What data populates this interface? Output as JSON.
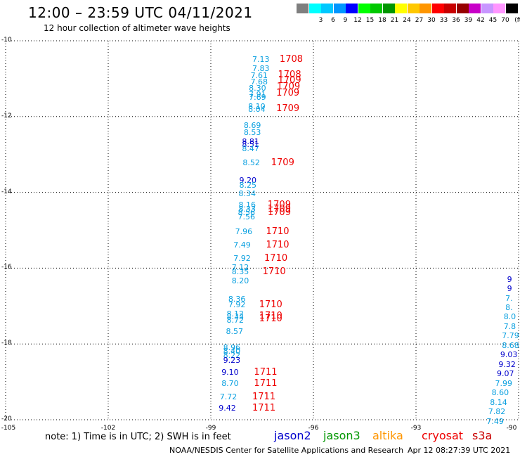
{
  "header": {
    "title": "12:00 – 23:59 UTC 04/11/2021",
    "subtitle": "12 hour collection of altimeter wave heights"
  },
  "color_scale": {
    "unit": "(ft)",
    "swatches": [
      {
        "color": "#7f7f7f",
        "label": ""
      },
      {
        "color": "#00ffff",
        "label": "3"
      },
      {
        "color": "#00c8ff",
        "label": "6"
      },
      {
        "color": "#0096ff",
        "label": "9"
      },
      {
        "color": "#0000ff",
        "label": "12"
      },
      {
        "color": "#00ff00",
        "label": "15"
      },
      {
        "color": "#00c800",
        "label": "18"
      },
      {
        "color": "#009600",
        "label": "21"
      },
      {
        "color": "#ffff00",
        "label": "24"
      },
      {
        "color": "#ffc800",
        "label": "27"
      },
      {
        "color": "#ff9600",
        "label": "30"
      },
      {
        "color": "#ff0000",
        "label": "33"
      },
      {
        "color": "#c80000",
        "label": "36"
      },
      {
        "color": "#960000",
        "label": "39"
      },
      {
        "color": "#c800c8",
        "label": "42"
      },
      {
        "color": "#c896ff",
        "label": "45"
      },
      {
        "color": "#ff96ff",
        "label": "70"
      },
      {
        "color": "#000000",
        "label": ""
      }
    ]
  },
  "axes": {
    "lat_ticks": [
      "-10",
      "-12",
      "-14",
      "-16",
      "-18",
      "-20"
    ],
    "lon_ticks": [
      "-105",
      "-102",
      "-99",
      "-96",
      "-93",
      "-90"
    ]
  },
  "chart_data": {
    "type": "scatter",
    "lon_range": [
      -105,
      -90
    ],
    "lat_range": [
      -20,
      -10
    ],
    "observations": [
      {
        "lon": -97.5,
        "lat": -10.5,
        "swh": "7.13",
        "sat": "jason3"
      },
      {
        "lon": -97.5,
        "lat": -10.75,
        "swh": "7.83",
        "sat": "jason3"
      },
      {
        "lon": -97.55,
        "lat": -10.92,
        "swh": "7.61",
        "sat": "jason3"
      },
      {
        "lon": -97.55,
        "lat": -11.1,
        "swh": "7.68",
        "sat": "jason3"
      },
      {
        "lon": -97.6,
        "lat": -11.27,
        "swh": "8.30",
        "sat": "jason3"
      },
      {
        "lon": -97.6,
        "lat": -11.42,
        "swh": "7.91",
        "sat": "jason3"
      },
      {
        "lon": -97.6,
        "lat": -11.5,
        "swh": "7.69",
        "sat": "jason3"
      },
      {
        "lon": -97.62,
        "lat": -11.75,
        "swh": "8.10",
        "sat": "jason3"
      },
      {
        "lon": -97.62,
        "lat": -11.82,
        "swh": "8.04",
        "sat": "jason3"
      },
      {
        "lon": -97.75,
        "lat": -12.25,
        "swh": "8.69",
        "sat": "jason3"
      },
      {
        "lon": -97.75,
        "lat": -12.43,
        "swh": "8.53",
        "sat": "jason3"
      },
      {
        "lon": -97.8,
        "lat": -12.68,
        "swh": "8.81",
        "sat": "jason2"
      },
      {
        "lon": -97.8,
        "lat": -12.75,
        "swh": "8.51",
        "sat": "jason2"
      },
      {
        "lon": -97.8,
        "lat": -12.85,
        "swh": "8.47",
        "sat": "jason3"
      },
      {
        "lon": -97.78,
        "lat": -13.22,
        "swh": "8.52",
        "sat": "jason3"
      },
      {
        "lon": -97.88,
        "lat": -13.7,
        "swh": "9.20",
        "sat": "jason2"
      },
      {
        "lon": -97.88,
        "lat": -13.82,
        "swh": "8.25",
        "sat": "jason3"
      },
      {
        "lon": -97.9,
        "lat": -14.05,
        "swh": "8.34",
        "sat": "jason3"
      },
      {
        "lon": -97.9,
        "lat": -14.35,
        "swh": "8.16",
        "sat": "jason3"
      },
      {
        "lon": -97.9,
        "lat": -14.45,
        "swh": "8.33",
        "sat": "jason3"
      },
      {
        "lon": -97.92,
        "lat": -14.55,
        "swh": "8.56",
        "sat": "jason3"
      },
      {
        "lon": -97.92,
        "lat": -14.65,
        "swh": "7.56",
        "sat": "jason3"
      },
      {
        "lon": -98.0,
        "lat": -15.05,
        "swh": "7.96",
        "sat": "jason3"
      },
      {
        "lon": -98.05,
        "lat": -15.4,
        "swh": "7.49",
        "sat": "jason3"
      },
      {
        "lon": -98.05,
        "lat": -15.75,
        "swh": "7.92",
        "sat": "jason3"
      },
      {
        "lon": -98.1,
        "lat": -16.0,
        "swh": "7.12",
        "sat": "jason3"
      },
      {
        "lon": -98.1,
        "lat": -16.1,
        "swh": "8.35",
        "sat": "jason3"
      },
      {
        "lon": -98.1,
        "lat": -16.35,
        "swh": "8.20",
        "sat": "jason3"
      },
      {
        "lon": -98.2,
        "lat": -16.82,
        "swh": "8.36",
        "sat": "jason3"
      },
      {
        "lon": -98.2,
        "lat": -16.98,
        "swh": "7.92",
        "sat": "jason3"
      },
      {
        "lon": -98.25,
        "lat": -17.22,
        "swh": "8.12",
        "sat": "jason3"
      },
      {
        "lon": -98.25,
        "lat": -17.3,
        "swh": "8.33",
        "sat": "jason3"
      },
      {
        "lon": -98.25,
        "lat": -17.38,
        "swh": "8.72",
        "sat": "jason3"
      },
      {
        "lon": -98.27,
        "lat": -17.68,
        "swh": "8.57",
        "sat": "jason3"
      },
      {
        "lon": -98.35,
        "lat": -18.1,
        "swh": "8.96",
        "sat": "jason3"
      },
      {
        "lon": -98.35,
        "lat": -18.2,
        "swh": "8.40",
        "sat": "jason3"
      },
      {
        "lon": -98.35,
        "lat": -18.32,
        "swh": "8.22",
        "sat": "jason3"
      },
      {
        "lon": -98.35,
        "lat": -18.45,
        "swh": "9.23",
        "sat": "jason2"
      },
      {
        "lon": -98.4,
        "lat": -18.75,
        "swh": "9.10",
        "sat": "jason2"
      },
      {
        "lon": -98.4,
        "lat": -19.05,
        "swh": "8.70",
        "sat": "jason3"
      },
      {
        "lon": -98.45,
        "lat": -19.4,
        "swh": "7.72",
        "sat": "jason3"
      },
      {
        "lon": -98.48,
        "lat": -19.7,
        "swh": "9.42",
        "sat": "jason2"
      },
      {
        "lon": -90.05,
        "lat": -16.3,
        "swh": "9",
        "sat": "jason2"
      },
      {
        "lon": -90.05,
        "lat": -16.55,
        "swh": "9",
        "sat": "jason2"
      },
      {
        "lon": -90.1,
        "lat": -16.8,
        "swh": "7.",
        "sat": "jason3"
      },
      {
        "lon": -90.1,
        "lat": -17.05,
        "swh": "8.",
        "sat": "jason3"
      },
      {
        "lon": -90.15,
        "lat": -17.3,
        "swh": "8.0",
        "sat": "jason3"
      },
      {
        "lon": -90.15,
        "lat": -17.55,
        "swh": "7.8",
        "sat": "jason3"
      },
      {
        "lon": -90.2,
        "lat": -17.8,
        "swh": "7.79",
        "sat": "jason3"
      },
      {
        "lon": -90.2,
        "lat": -18.05,
        "swh": "8.68",
        "sat": "jason3"
      },
      {
        "lon": -90.25,
        "lat": -18.3,
        "swh": "9.03",
        "sat": "jason2"
      },
      {
        "lon": -90.3,
        "lat": -18.55,
        "swh": "9.32",
        "sat": "jason2"
      },
      {
        "lon": -90.35,
        "lat": -18.8,
        "swh": "9.07",
        "sat": "jason2"
      },
      {
        "lon": -90.4,
        "lat": -19.05,
        "swh": "7.99",
        "sat": "jason3"
      },
      {
        "lon": -90.5,
        "lat": -19.3,
        "swh": "8.60",
        "sat": "jason3"
      },
      {
        "lon": -90.55,
        "lat": -19.55,
        "swh": "8.14",
        "sat": "jason3"
      },
      {
        "lon": -90.6,
        "lat": -19.8,
        "swh": "7.82",
        "sat": "jason3"
      },
      {
        "lon": -90.65,
        "lat": -20.05,
        "swh": "7.49",
        "sat": "jason3"
      }
    ],
    "time_labels": [
      {
        "lon": -96.7,
        "lat": -10.5,
        "text": "1708"
      },
      {
        "lon": -96.75,
        "lat": -10.9,
        "text": "1708"
      },
      {
        "lon": -96.75,
        "lat": -11.05,
        "text": "1709"
      },
      {
        "lon": -96.78,
        "lat": -11.22,
        "text": "1709"
      },
      {
        "lon": -96.8,
        "lat": -11.4,
        "text": "1709"
      },
      {
        "lon": -96.8,
        "lat": -11.8,
        "text": "1709"
      },
      {
        "lon": -96.95,
        "lat": -13.22,
        "text": "1709"
      },
      {
        "lon": -97.05,
        "lat": -14.35,
        "text": "1709"
      },
      {
        "lon": -97.05,
        "lat": -14.45,
        "text": "1709"
      },
      {
        "lon": -97.05,
        "lat": -14.55,
        "text": "1709"
      },
      {
        "lon": -97.1,
        "lat": -15.05,
        "text": "1710"
      },
      {
        "lon": -97.1,
        "lat": -15.4,
        "text": "1710"
      },
      {
        "lon": -97.15,
        "lat": -15.75,
        "text": "1710"
      },
      {
        "lon": -97.2,
        "lat": -16.1,
        "text": "1710"
      },
      {
        "lon": -97.3,
        "lat": -16.98,
        "text": "1710"
      },
      {
        "lon": -97.3,
        "lat": -17.27,
        "text": "1710"
      },
      {
        "lon": -97.3,
        "lat": -17.35,
        "text": "1710"
      },
      {
        "lon": -97.45,
        "lat": -18.75,
        "text": "1711"
      },
      {
        "lon": -97.45,
        "lat": -19.05,
        "text": "1711"
      },
      {
        "lon": -97.5,
        "lat": -19.4,
        "text": "1711"
      },
      {
        "lon": -97.5,
        "lat": -19.7,
        "text": "1711"
      }
    ]
  },
  "legend": {
    "note": "note:  1) Time is in UTC;  2) SWH is in feet",
    "satellites": [
      {
        "name": "jason2",
        "color": "#0000cc"
      },
      {
        "name": "jason3",
        "color": "#009600"
      },
      {
        "name": "altika",
        "color": "#ff9600"
      },
      {
        "name": "cryosat",
        "color": "#ee0000"
      },
      {
        "name": "s3a",
        "color": "#c80000"
      }
    ]
  },
  "footer": {
    "credit": "NOAA/NESDIS Center for Satellite Applications and Research",
    "timestamp": "Apr 12 08:27:39 UTC 2021"
  }
}
